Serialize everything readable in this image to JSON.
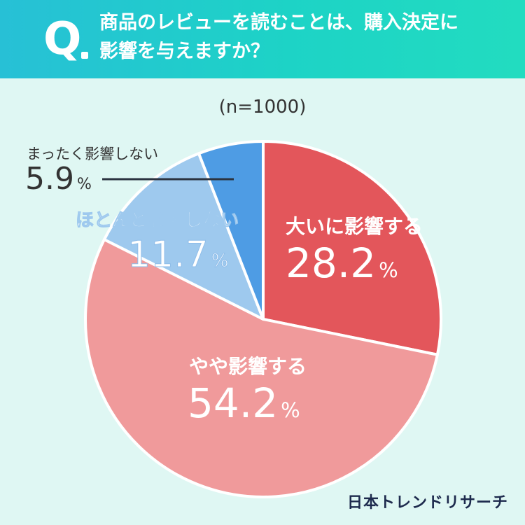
{
  "question": {
    "mark": "Q",
    "line1": "商品のレビューを読むことは、購入決定に",
    "line2": "影響を与えますか？"
  },
  "sample_size": "(n=1000)",
  "brand": "日本トレンドリサーチ",
  "percent_sign": "%",
  "chart_data": {
    "type": "pie",
    "start": "12 o'clock, clockwise",
    "title": "",
    "slices": [
      {
        "label": "大いに影響する",
        "value": 28.2,
        "value_text": "28.2",
        "color": "#e3565b"
      },
      {
        "label": "やや影響する",
        "value": 54.2,
        "value_text": "54.2",
        "color": "#f09a9b"
      },
      {
        "label": "ほとんど影響しない",
        "value": 11.7,
        "value_text": "11.7",
        "color": "#9ec9ee"
      },
      {
        "label": "まったく影響しない",
        "value": 5.9,
        "value_text": "5.9",
        "color": "#4e9ce4"
      }
    ]
  }
}
